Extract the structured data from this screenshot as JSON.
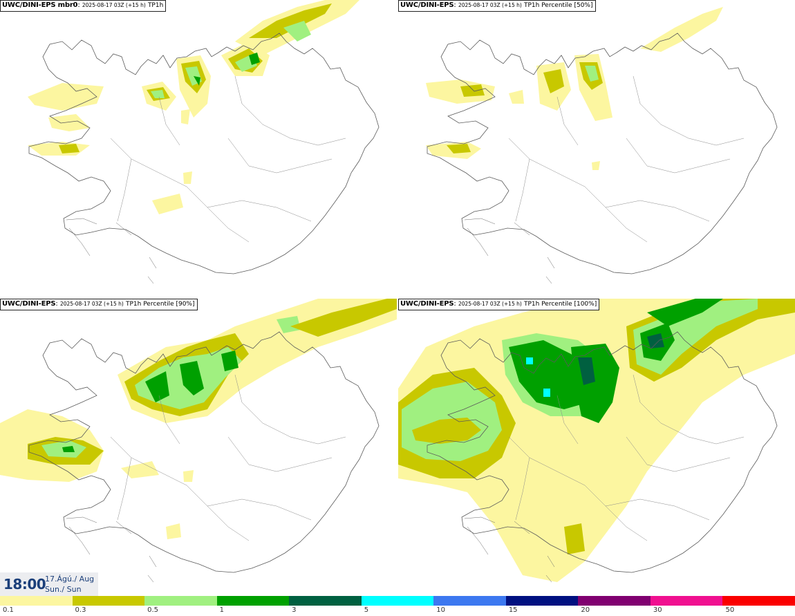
{
  "panels": [
    {
      "model": "UWC/DINI-EPS mbr0",
      "run": "2025-08-17 03Z (+15 h)",
      "param": "TP1h"
    },
    {
      "model": "UWC/DINI-EPS",
      "run": "2025-08-17 03Z (+15 h)",
      "param": "TP1h Percentile [50%]"
    },
    {
      "model": "UWC/DINI-EPS",
      "run": "2025-08-17 03Z (+15 h)",
      "param": "TP1h Percentile [90%]"
    },
    {
      "model": "UWC/DINI-EPS",
      "run": "2025-08-17 03Z (+15 h)",
      "param": "TP1h Percentile [100%]"
    }
  ],
  "valid_time": {
    "time": "18:00",
    "date_line": "17.Ágú./ Aug",
    "day_line": "Sun./ Sun"
  },
  "legend": {
    "ticks": [
      "0.1",
      "0.3",
      "0.5",
      "1",
      "3",
      "5",
      "10",
      "15",
      "20",
      "30",
      "50"
    ],
    "colors": [
      "#fcf6a0",
      "#c8c800",
      "#a0f080",
      "#00a000",
      "#006040",
      "#00ffff",
      "#3c78f0",
      "#001080",
      "#800070",
      "#f01090",
      "#fa0000"
    ]
  }
}
